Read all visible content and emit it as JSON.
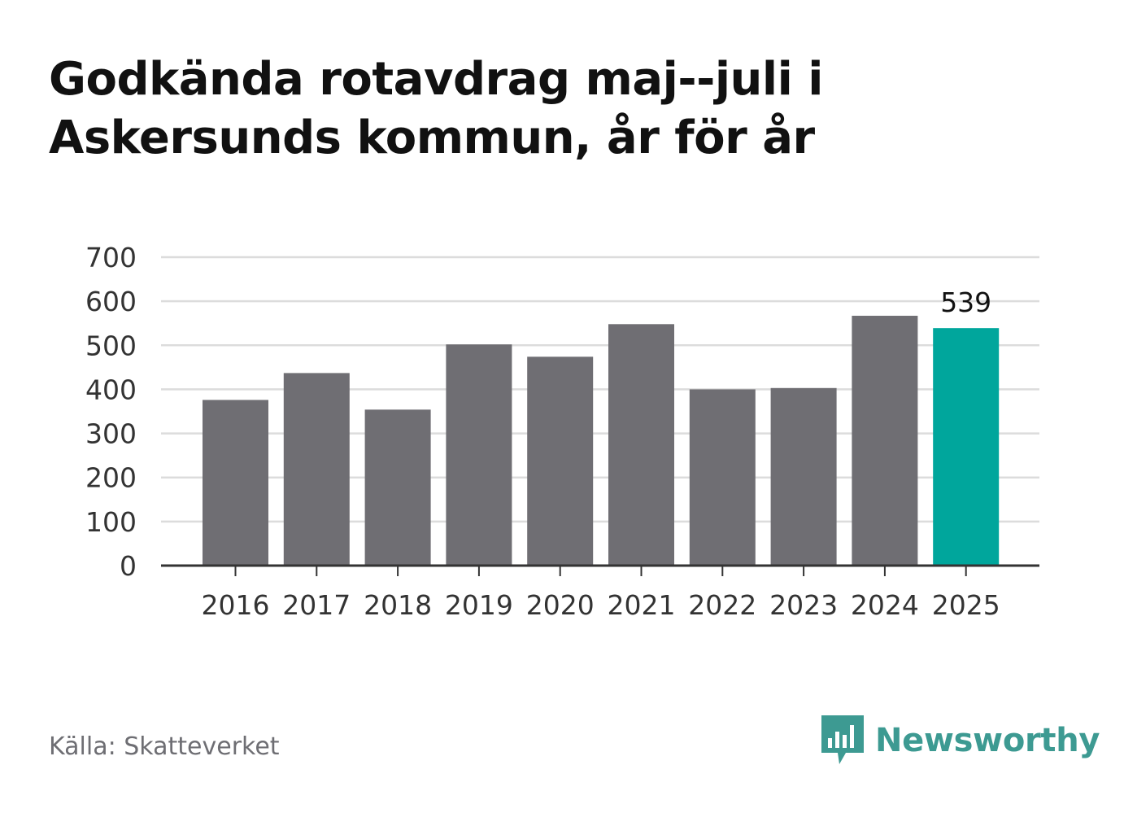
{
  "title_line1": "Godkända rotavdrag maj--juli i",
  "title_line2": "Askersunds kommun, år för år",
  "source": "Källa: Skatteverket",
  "brand": "Newsworthy",
  "chart_data": {
    "type": "bar",
    "categories": [
      "2016",
      "2017",
      "2018",
      "2019",
      "2020",
      "2021",
      "2022",
      "2023",
      "2024",
      "2025"
    ],
    "values": [
      376,
      437,
      354,
      502,
      474,
      548,
      400,
      403,
      567,
      539
    ],
    "ylim": [
      0,
      700
    ],
    "yticks": [
      "0",
      "100",
      "200",
      "300",
      "400",
      "500",
      "600",
      "700"
    ],
    "grid": true,
    "highlight_index": 9,
    "highlight_label": "539",
    "colors": {
      "bar": "#6f6e73",
      "highlight": "#00a69c",
      "grid": "#dcdcdc",
      "axis": "#333333"
    }
  }
}
